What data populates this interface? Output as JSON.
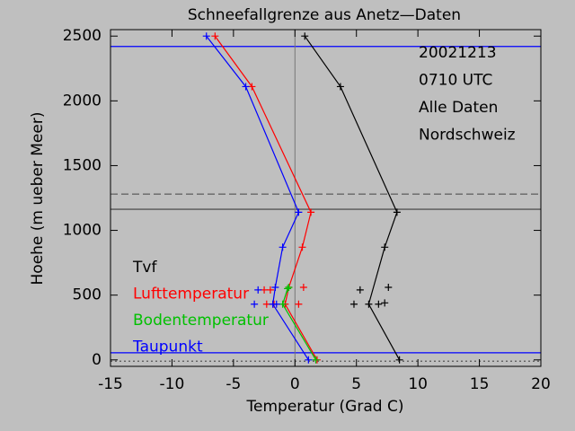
{
  "chart_data": {
    "type": "line",
    "title": "Schneefallgrenze aus Anetz—Daten",
    "x_label": "Temperatur (Grad C)",
    "y_label": "Hoehe (m ueber Meer)",
    "xlim": [
      -15,
      20
    ],
    "xticks": [
      -15,
      -10,
      -5,
      0,
      5,
      10,
      15,
      20
    ],
    "ylim": [
      -50,
      2550
    ],
    "yticks": [
      0,
      500,
      1000,
      1500,
      2000,
      2500
    ],
    "annotations": [
      "20021213",
      "0710 UTC",
      "Alle Daten",
      "Nordschweiz"
    ],
    "reference_lines": [
      {
        "value": 2420,
        "color": "#0000ff",
        "dash": "solid"
      },
      {
        "value": 1280,
        "color": "#666666",
        "dash": "dashed"
      },
      {
        "value": 1163,
        "color": "#555555",
        "dash": "solid"
      },
      {
        "value": 55,
        "color": "#0000ff",
        "dash": "solid"
      },
      {
        "value": -10,
        "color": "#555555",
        "dash": "dotted"
      }
    ],
    "zero_line_color": "#777777",
    "series": [
      {
        "name": "Tvf",
        "color": "#000000",
        "x": [
          0.8,
          3.7,
          8.3,
          7.3,
          6.0,
          8.5
        ],
        "values": [
          2500,
          2110,
          1140,
          870,
          430,
          0
        ],
        "points_x": [
          5.3,
          7.6,
          4.8,
          6.8,
          7.3
        ],
        "points_y": [
          540,
          560,
          430,
          430,
          440
        ]
      },
      {
        "name": "Lufttemperatur",
        "color": "#ff0000",
        "x": [
          -6.5,
          -3.5,
          1.3,
          0.6,
          -0.5,
          -0.8,
          1.8
        ],
        "values": [
          2500,
          2110,
          1140,
          870,
          560,
          430,
          0
        ],
        "points_x": [
          -2.5,
          -2.0,
          0.7,
          -2.3,
          -1.7,
          0.3
        ],
        "points_y": [
          540,
          540,
          560,
          430,
          430,
          430
        ]
      },
      {
        "name": "Bodentemperatur",
        "color": "#00c000",
        "x": [
          -0.6,
          -1.0,
          1.7
        ],
        "values": [
          550,
          430,
          0
        ],
        "points_x": [
          -0.5
        ],
        "points_y": [
          560
        ]
      },
      {
        "name": "Taupunkt",
        "color": "#0000ff",
        "x": [
          -7.2,
          -4.0,
          0.3,
          -1.0,
          -1.6,
          -1.8,
          1.1
        ],
        "values": [
          2500,
          2110,
          1140,
          870,
          560,
          430,
          0
        ],
        "points_x": [
          -3.0,
          -3.3,
          -1.5
        ],
        "points_y": [
          540,
          430,
          430
        ]
      }
    ]
  }
}
